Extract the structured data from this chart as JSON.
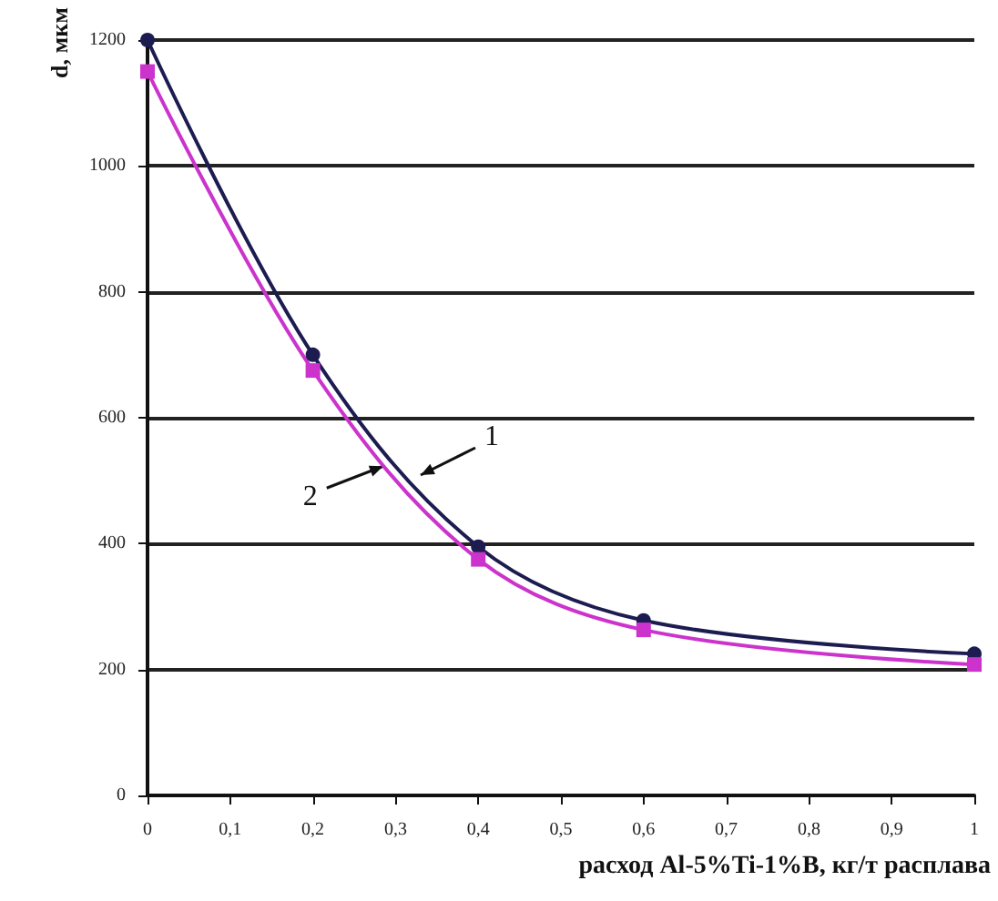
{
  "chart_data": {
    "type": "line",
    "ylabel": "d, мкм",
    "xlabel": "расход Al-5%Ti-1%B, кг/т расплава",
    "x": [
      0,
      0.2,
      0.4,
      0.6,
      1
    ],
    "series": [
      {
        "color": "#1c1c50",
        "marker": "circle",
        "values": [
          1200,
          700,
          395,
          278,
          225
        ]
      },
      {
        "color": "#cc33cc",
        "marker": "square",
        "values": [
          1150,
          675,
          375,
          263,
          208
        ]
      }
    ],
    "xlim": [
      0,
      1
    ],
    "xticks": [
      0,
      {
        "value": 0.1,
        "label": "0,1"
      },
      {
        "value": 0.2,
        "label": "0,2"
      },
      {
        "value": 0.3,
        "label": "0,3"
      },
      {
        "value": 0.4,
        "label": "0,4"
      },
      {
        "value": 0.5,
        "label": "0,5"
      },
      {
        "value": 0.6,
        "label": "0,6"
      },
      {
        "value": 0.7,
        "label": "0,7"
      },
      {
        "value": 0.8,
        "label": "0,8"
      },
      {
        "value": 0.9,
        "label": "0,9"
      },
      1
    ],
    "ylim": [
      0,
      1200
    ],
    "yticks": [
      0,
      200,
      400,
      600,
      800,
      1000,
      1200
    ],
    "grid": "y",
    "annotations": [
      "1",
      {
        "text": "2",
        "x": 0.285,
        "y": 523
      }
    ]
  }
}
